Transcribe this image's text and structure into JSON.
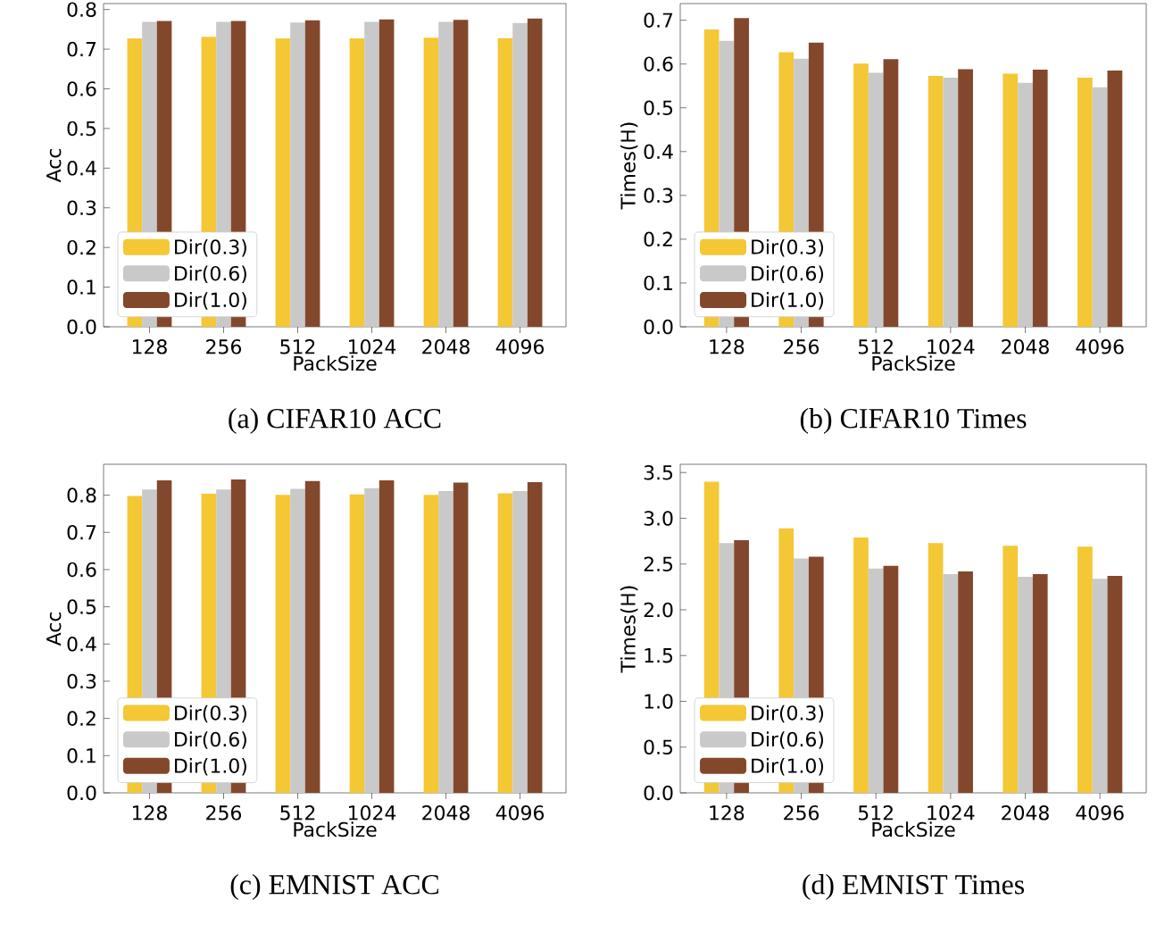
{
  "chart_data": [
    {
      "type": "bar",
      "xlabel": "PackSize",
      "ylabel": "Acc",
      "annotations": [
        "(a) CIFAR10 ACC"
      ],
      "categories": [
        "128",
        "256",
        "512",
        "1024",
        "2048",
        "4096"
      ],
      "series": [
        {
          "name": "Dir(0.3)",
          "color": "#f4c735",
          "values": [
            0.727,
            0.731,
            0.727,
            0.727,
            0.729,
            0.728
          ]
        },
        {
          "name": "Dir(0.6)",
          "color": "#c9c9c9",
          "values": [
            0.769,
            0.769,
            0.767,
            0.769,
            0.769,
            0.766
          ]
        },
        {
          "name": "Dir(1.0)",
          "color": "#83482c",
          "values": [
            0.771,
            0.771,
            0.773,
            0.775,
            0.774,
            0.777
          ]
        }
      ],
      "ylim": [
        0,
        0.815
      ],
      "yticks": [
        {
          "value": 0,
          "label": "0.0"
        },
        0.1,
        0.2,
        0.3,
        0.4,
        0.5,
        0.6,
        0.7,
        0.8
      ],
      "legend": "bottom left"
    },
    {
      "type": "bar",
      "xlabel": "PackSize",
      "ylabel": "Times(H)",
      "annotations": [
        "(b) CIFAR10 Times"
      ],
      "categories": [
        "128",
        "256",
        "512",
        "1024",
        "2048",
        "4096"
      ],
      "series": [
        {
          "name": "Dir(0.3)",
          "color": "#f4c735",
          "values": [
            0.679,
            0.627,
            0.601,
            0.573,
            0.578,
            0.569
          ]
        },
        {
          "name": "Dir(0.6)",
          "color": "#c9c9c9",
          "values": [
            0.653,
            0.612,
            0.58,
            0.569,
            0.557,
            0.547
          ]
        },
        {
          "name": "Dir(1.0)",
          "color": "#83482c",
          "values": [
            0.705,
            0.649,
            0.611,
            0.588,
            0.587,
            0.585
          ]
        }
      ],
      "ylim": [
        0,
        0.738
      ],
      "yticks": [
        {
          "value": 0,
          "label": "0.0"
        },
        0.1,
        0.2,
        0.3,
        0.4,
        0.5,
        0.6,
        0.7
      ],
      "legend": "bottom left"
    },
    {
      "type": "bar",
      "xlabel": "PackSize",
      "ylabel": "Acc",
      "annotations": [
        "(c) EMNIST ACC"
      ],
      "categories": [
        "128",
        "256",
        "512",
        "1024",
        "2048",
        "4096"
      ],
      "series": [
        {
          "name": "Dir(0.3)",
          "color": "#f4c735",
          "values": [
            0.798,
            0.804,
            0.801,
            0.802,
            0.801,
            0.805
          ]
        },
        {
          "name": "Dir(0.6)",
          "color": "#c9c9c9",
          "values": [
            0.815,
            0.815,
            0.817,
            0.819,
            0.811,
            0.811
          ]
        },
        {
          "name": "Dir(1.0)",
          "color": "#83482c",
          "values": [
            0.84,
            0.842,
            0.838,
            0.84,
            0.834,
            0.835
          ]
        }
      ],
      "ylim": [
        0,
        0.883
      ],
      "yticks": [
        {
          "value": 0,
          "label": "0.0"
        },
        0.1,
        0.2,
        0.3,
        0.4,
        0.5,
        0.6,
        0.7,
        0.8
      ],
      "legend": "bottom left"
    },
    {
      "type": "bar",
      "xlabel": "PackSize",
      "ylabel": "Times(H)",
      "annotations": [
        "(d) EMNIST Times"
      ],
      "categories": [
        "128",
        "256",
        "512",
        "1024",
        "2048",
        "4096"
      ],
      "series": [
        {
          "name": "Dir(0.3)",
          "color": "#f4c735",
          "values": [
            3.4,
            2.89,
            2.79,
            2.73,
            2.7,
            2.69
          ]
        },
        {
          "name": "Dir(0.6)",
          "color": "#c9c9c9",
          "values": [
            2.73,
            2.56,
            2.45,
            2.39,
            2.36,
            2.34
          ]
        },
        {
          "name": "Dir(1.0)",
          "color": "#83482c",
          "values": [
            2.76,
            2.58,
            2.48,
            2.42,
            2.39,
            2.37
          ]
        }
      ],
      "ylim": [
        0,
        3.59
      ],
      "yticks": [
        {
          "value": 0,
          "label": "0.0"
        },
        0.5,
        {
          "value": 1,
          "label": "1.0"
        },
        1.5,
        {
          "value": 2,
          "label": "2.0"
        },
        2.5,
        {
          "value": 3,
          "label": "3.0"
        },
        3.5
      ],
      "legend": "bottom left"
    }
  ]
}
